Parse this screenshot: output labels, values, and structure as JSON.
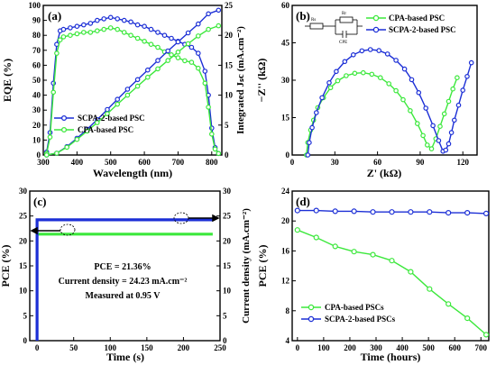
{
  "colors": {
    "blue": "#1c2fd6",
    "green": "#3ce83c",
    "axis": "#000000"
  },
  "chart_data": [
    {
      "panel_label": "(a)",
      "type": "line",
      "xlabel": "Wavelength (nm)",
      "ylabel": "EQE (%)",
      "y2label": "Integrated Jₛc (mA.cm⁻²)",
      "xlim": [
        300,
        830
      ],
      "ylim": [
        0,
        100
      ],
      "y2lim": [
        0,
        25
      ],
      "xticks": [
        "300",
        "400",
        "500",
        "600",
        "700",
        "800"
      ],
      "yticks": [
        "0",
        "10",
        "20",
        "30",
        "40",
        "50",
        "60",
        "70",
        "80",
        "90",
        "100"
      ],
      "y2ticks": [
        "0",
        "5",
        "10",
        "15",
        "20",
        "25"
      ],
      "legend": "center-left",
      "series": [
        {
          "name": "SCPA-2-based PSC",
          "axis": "left",
          "color": "#1c2fd6",
          "x": [
            310,
            320,
            330,
            340,
            350,
            360,
            380,
            400,
            420,
            440,
            460,
            480,
            500,
            520,
            540,
            560,
            580,
            600,
            620,
            640,
            660,
            680,
            700,
            720,
            740,
            760,
            780,
            790,
            800,
            810,
            820
          ],
          "values": [
            2,
            15,
            48,
            74,
            83,
            84,
            85,
            86,
            87,
            88,
            90,
            91,
            92,
            91,
            90,
            89,
            87,
            86,
            84,
            82,
            80,
            78,
            76,
            74,
            72,
            68,
            56,
            40,
            18,
            5,
            1
          ]
        },
        {
          "name": "CPA-based PSC",
          "axis": "left",
          "color": "#3ce83c",
          "x": [
            310,
            320,
            330,
            340,
            350,
            360,
            380,
            400,
            420,
            440,
            460,
            480,
            500,
            520,
            540,
            560,
            580,
            600,
            620,
            640,
            660,
            680,
            700,
            720,
            740,
            760,
            780,
            790,
            800,
            810,
            820
          ],
          "values": [
            1,
            12,
            42,
            68,
            77,
            79,
            80,
            81,
            82,
            82,
            83,
            84,
            85,
            84,
            82,
            80,
            78,
            76,
            74,
            72,
            69,
            67,
            65,
            63,
            62,
            58,
            48,
            32,
            14,
            4,
            1
          ]
        },
        {
          "name": "",
          "axis": "right",
          "color": "#1c2fd6",
          "x": [
            310,
            340,
            370,
            400,
            430,
            460,
            490,
            520,
            550,
            580,
            610,
            640,
            670,
            700,
            730,
            760,
            790,
            820
          ],
          "values": [
            0,
            0.3,
            1.4,
            2.8,
            4.3,
            5.9,
            7.6,
            9.3,
            11.0,
            12.6,
            14.2,
            15.8,
            17.4,
            18.9,
            20.4,
            21.9,
            23.6,
            24.2
          ]
        },
        {
          "name": "",
          "axis": "right",
          "color": "#3ce83c",
          "x": [
            310,
            340,
            370,
            400,
            430,
            460,
            490,
            520,
            550,
            580,
            610,
            640,
            670,
            700,
            730,
            760,
            790,
            820
          ],
          "values": [
            0,
            0.3,
            1.3,
            2.6,
            4.0,
            5.4,
            6.9,
            8.5,
            10.0,
            11.5,
            13.0,
            14.4,
            15.8,
            17.2,
            18.6,
            19.9,
            21.0,
            21.6
          ]
        }
      ]
    },
    {
      "panel_label": "(b)",
      "type": "line",
      "xlabel": "Z' (kΩ)",
      "ylabel": "−Z'' (kΩ)",
      "xlim": [
        0,
        130
      ],
      "ylim": [
        0,
        60
      ],
      "xticks": [
        "0",
        "30",
        "60",
        "90",
        "120"
      ],
      "yticks": [
        "0",
        "15",
        "30",
        "45",
        "60"
      ],
      "legend": "top-right",
      "circuit_labels": [
        "Rs",
        "Rr",
        "CPE"
      ],
      "series": [
        {
          "name": "CPA-based PSC",
          "color": "#3ce83c",
          "x": [
            10,
            11,
            13,
            15,
            18,
            22,
            27,
            32,
            38,
            44,
            50,
            56,
            62,
            68,
            73,
            78,
            83,
            88,
            92,
            95,
            98,
            101,
            104,
            107,
            110,
            113,
            116
          ],
          "values": [
            0,
            5,
            10,
            14,
            19,
            23,
            27,
            29.8,
            31.8,
            32.8,
            33.0,
            32.4,
            31.0,
            28.6,
            25.8,
            22.2,
            17.8,
            12.6,
            7.8,
            4.0,
            2.5,
            6.5,
            11.5,
            16.5,
            21.5,
            26.5,
            31
          ]
        },
        {
          "name": "SCPA-2-based PSC",
          "color": "#1c2fd6",
          "x": [
            11,
            12,
            14,
            17,
            21,
            26,
            31,
            37,
            43,
            49,
            55,
            61,
            67,
            73,
            79,
            84,
            89,
            94,
            99,
            103,
            106,
            108,
            110,
            112,
            114,
            117,
            120,
            123,
            126
          ],
          "values": [
            0,
            5,
            11,
            17,
            23,
            29,
            33.5,
            37.5,
            40.2,
            41.8,
            42.3,
            41.9,
            40.5,
            38.0,
            34.5,
            30.2,
            25.0,
            18.8,
            11.8,
            5.8,
            1.5,
            2.0,
            4.5,
            9,
            14,
            20,
            26,
            31.5,
            37
          ]
        }
      ]
    },
    {
      "panel_label": "(c)",
      "type": "line",
      "xlabel": "Time (s)",
      "ylabel": "PCE (%)",
      "y2label": "Current density (mA.cm⁻²)",
      "xlim": [
        -10,
        250
      ],
      "ylim": [
        0,
        30
      ],
      "y2lim": [
        0,
        30
      ],
      "xticks": [
        "0",
        "50",
        "100",
        "150",
        "200",
        "250"
      ],
      "yticks": [
        "0",
        "5",
        "10",
        "15",
        "20",
        "25",
        "30"
      ],
      "y2ticks": [
        "0",
        "5",
        "10",
        "15",
        "20",
        "25",
        "30"
      ],
      "annotations": [
        "PCE = 21.36%",
        "Current density = 24.23 mA.cm⁻²",
        "Measured at 0.95 V"
      ],
      "series": [
        {
          "name": "",
          "axis": "left",
          "color": "#3ce83c",
          "x": [
            0,
            240
          ],
          "values": [
            21.36,
            21.36
          ]
        },
        {
          "name": "",
          "axis": "right",
          "color": "#1c2fd6",
          "x": [
            0,
            0,
            240
          ],
          "values": [
            0,
            24.23,
            24.23
          ]
        }
      ]
    },
    {
      "panel_label": "(d)",
      "type": "line",
      "xlabel": "Time (hours)",
      "ylabel": "PCE (%)",
      "xlim": [
        -20,
        730
      ],
      "ylim": [
        4,
        24
      ],
      "xticks": [
        "0",
        "100",
        "200",
        "300",
        "400",
        "500",
        "600",
        "700"
      ],
      "yticks": [
        "4",
        "8",
        "12",
        "16",
        "20",
        "24"
      ],
      "legend": "bottom-left",
      "series": [
        {
          "name": "CPA-based PSCs",
          "color": "#3ce83c",
          "x": [
            0,
            72,
            144,
            216,
            288,
            360,
            432,
            504,
            576,
            648,
            720
          ],
          "values": [
            18.8,
            17.8,
            16.6,
            15.9,
            15.5,
            14.7,
            13.2,
            10.9,
            8.9,
            7.0,
            4.8
          ]
        },
        {
          "name": "SCPA-2-based PSCs",
          "color": "#1c2fd6",
          "x": [
            0,
            72,
            144,
            216,
            288,
            360,
            432,
            504,
            576,
            648,
            720
          ],
          "values": [
            21.4,
            21.4,
            21.3,
            21.3,
            21.2,
            21.2,
            21.2,
            21.2,
            21.1,
            21.1,
            21.0
          ]
        }
      ]
    }
  ]
}
